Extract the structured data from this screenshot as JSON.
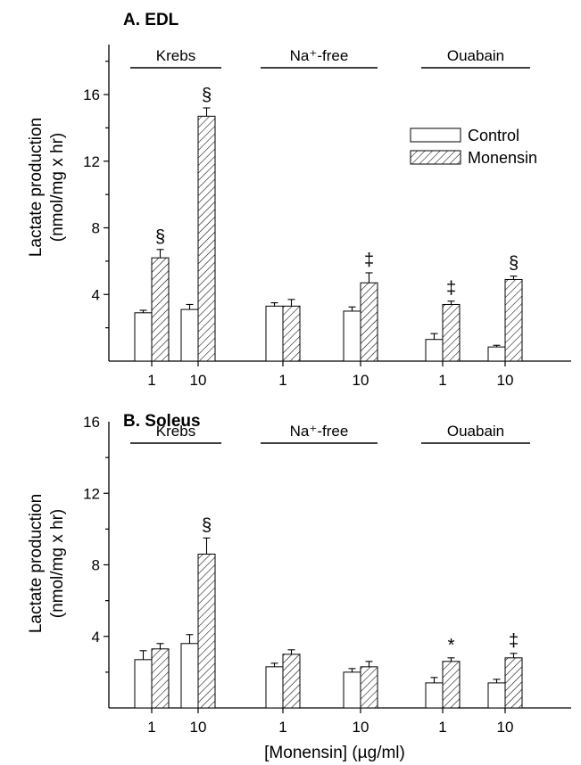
{
  "xlabel": "[Monensin] (µg/ml)",
  "legend": [
    {
      "key": "control",
      "label": "Control"
    },
    {
      "key": "monensin",
      "label": "Monensin"
    }
  ],
  "chart_data": [
    {
      "type": "bar",
      "title": "A.   EDL",
      "ylabel": [
        "Lactate production",
        "(nmol/mg x hr)"
      ],
      "ylim": [
        0,
        19
      ],
      "yticks": [
        4,
        8,
        12,
        16
      ],
      "legend_position": "top-right",
      "groups": [
        {
          "label": "Krebs",
          "bars": [
            {
              "x": "1",
              "control": 2.9,
              "control_err": 0.15,
              "monensin": 6.2,
              "monensin_err": 0.5,
              "sig": "§"
            },
            {
              "x": "10",
              "control": 3.1,
              "control_err": 0.3,
              "monensin": 14.7,
              "monensin_err": 0.5,
              "sig": "§"
            }
          ]
        },
        {
          "label": "Na⁺-free",
          "bars": [
            {
              "x": "1",
              "control": 3.3,
              "control_err": 0.2,
              "monensin": 3.3,
              "monensin_err": 0.4,
              "sig": ""
            },
            {
              "x": "10",
              "control": 3.0,
              "control_err": 0.25,
              "monensin": 4.7,
              "monensin_err": 0.6,
              "sig": "‡"
            }
          ]
        },
        {
          "label": "Ouabain",
          "bars": [
            {
              "x": "1",
              "control": 1.3,
              "control_err": 0.35,
              "monensin": 3.4,
              "monensin_err": 0.2,
              "sig": "‡"
            },
            {
              "x": "10",
              "control": 0.85,
              "control_err": 0.1,
              "monensin": 4.9,
              "monensin_err": 0.2,
              "sig": "§"
            }
          ]
        }
      ]
    },
    {
      "type": "bar",
      "title": "B.   Soleus",
      "ylabel": [
        "Lactate production",
        "(nmol/mg x hr)"
      ],
      "ylim": [
        0,
        16
      ],
      "yticks": [
        4,
        8,
        12,
        16
      ],
      "groups": [
        {
          "label": "Krebs",
          "bars": [
            {
              "x": "1",
              "control": 2.7,
              "control_err": 0.5,
              "monensin": 3.3,
              "monensin_err": 0.3,
              "sig": ""
            },
            {
              "x": "10",
              "control": 3.6,
              "control_err": 0.5,
              "monensin": 8.6,
              "monensin_err": 0.9,
              "sig": "§"
            }
          ]
        },
        {
          "label": "Na⁺-free",
          "bars": [
            {
              "x": "1",
              "control": 2.3,
              "control_err": 0.2,
              "monensin": 3.0,
              "monensin_err": 0.25,
              "sig": ""
            },
            {
              "x": "10",
              "control": 2.0,
              "control_err": 0.2,
              "monensin": 2.3,
              "monensin_err": 0.3,
              "sig": ""
            }
          ]
        },
        {
          "label": "Ouabain",
          "bars": [
            {
              "x": "1",
              "control": 1.4,
              "control_err": 0.3,
              "monensin": 2.6,
              "monensin_err": 0.2,
              "sig": "*"
            },
            {
              "x": "10",
              "control": 1.4,
              "control_err": 0.2,
              "monensin": 2.8,
              "monensin_err": 0.25,
              "sig": "‡"
            }
          ]
        }
      ]
    }
  ]
}
